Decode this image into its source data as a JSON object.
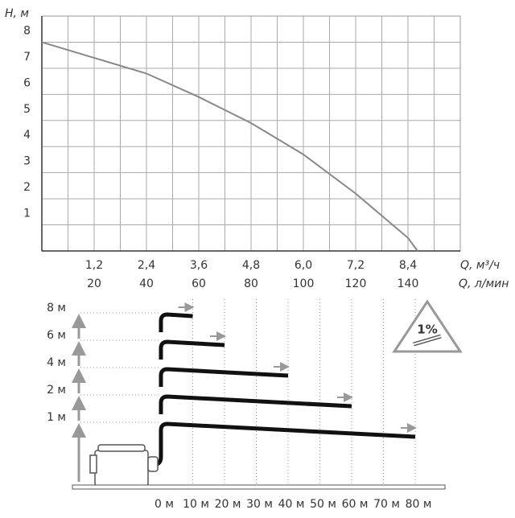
{
  "chart_data": [
    {
      "type": "line",
      "y_label": "H, м",
      "x_label": "Q, м³/ч",
      "x2_label": "Q, л/мин",
      "grid": true,
      "xlim": [
        0,
        9.6
      ],
      "ylim": [
        0,
        9
      ],
      "xticks": [
        {
          "value": 1.2,
          "label": "1,2"
        },
        {
          "value": 2.4,
          "label": "2,4"
        },
        {
          "value": 3.6,
          "label": "3,6"
        },
        {
          "value": 4.8,
          "label": "4,8"
        },
        {
          "value": 6.0,
          "label": "6,0"
        },
        {
          "value": 7.2,
          "label": "7,2"
        },
        {
          "value": 8.4,
          "label": "8,4"
        }
      ],
      "x2lim": [
        0,
        160
      ],
      "x2ticks": [
        20,
        40,
        60,
        80,
        100,
        120,
        140
      ],
      "yticks": [
        1,
        2,
        3,
        4,
        5,
        6,
        7,
        8
      ],
      "series": [
        {
          "color": "#888888",
          "x": [
            0,
            1.2,
            2.4,
            3.6,
            4.8,
            6.0,
            7.2,
            8.4,
            8.62
          ],
          "values": [
            8,
            7.4,
            6.8,
            5.9,
            4.9,
            3.7,
            2.2,
            0.5,
            0
          ]
        }
      ]
    },
    {
      "type": "schematic",
      "slope_label": "1%",
      "xticks": [
        {
          "value": 0,
          "label": "0 м"
        },
        {
          "value": 10,
          "label": "10 м"
        },
        {
          "value": 20,
          "label": "20 м"
        },
        {
          "value": 30,
          "label": "30 м"
        },
        {
          "value": 40,
          "label": "40 м"
        },
        {
          "value": 50,
          "label": "50 м"
        },
        {
          "value": 60,
          "label": "60 м"
        },
        {
          "value": 70,
          "label": "70 м"
        },
        {
          "value": 80,
          "label": "80 м"
        }
      ],
      "yticks": [
        {
          "value": 8,
          "label": "8 м"
        },
        {
          "value": 6,
          "label": "6 м"
        },
        {
          "value": 4,
          "label": "4 м"
        },
        {
          "value": 2,
          "label": "2 м"
        },
        {
          "value": 1,
          "label": "1 м"
        }
      ],
      "runs": [
        {
          "height": 8,
          "distance": 10
        },
        {
          "height": 6,
          "distance": 20
        },
        {
          "height": 4,
          "distance": 40
        },
        {
          "height": 2,
          "distance": 60
        },
        {
          "height": 1,
          "distance": 80
        }
      ]
    }
  ]
}
